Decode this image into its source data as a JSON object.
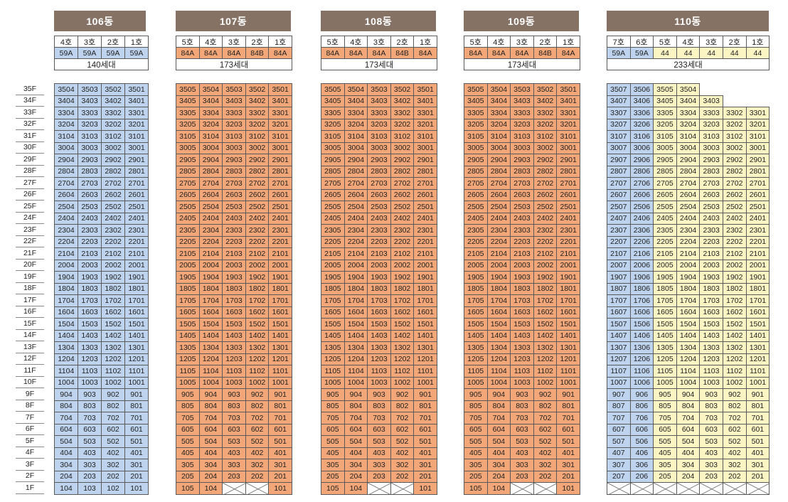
{
  "colors": {
    "59A": "#bed3ee",
    "84A": "#f3a677",
    "84B": "#f3a677",
    "44": "#fbf5c3",
    "empty": "#ffffff",
    "header": "#857265"
  },
  "floors": [
    "35F",
    "34F",
    "33F",
    "32F",
    "31F",
    "30F",
    "29F",
    "28F",
    "27F",
    "26F",
    "25F",
    "24F",
    "23F",
    "22F",
    "21F",
    "20F",
    "19F",
    "18F",
    "17F",
    "16F",
    "15F",
    "14F",
    "13F",
    "12F",
    "11F",
    "10F",
    "9F",
    "8F",
    "7F",
    "6F",
    "5F",
    "4F",
    "3F",
    "2F",
    "1F"
  ],
  "buildings": [
    {
      "name": "106동",
      "units": [
        "4호",
        "3호",
        "2호",
        "1호"
      ],
      "types": [
        "59A",
        "59A",
        "59A",
        "59A"
      ],
      "households": "140세대",
      "typeClass": [
        "blue",
        "blue",
        "blue",
        "blue"
      ],
      "maxFloor": [
        35,
        35,
        35,
        35
      ],
      "empty1F": []
    },
    {
      "name": "107동",
      "units": [
        "5호",
        "4호",
        "3호",
        "2호",
        "1호"
      ],
      "types": [
        "84A",
        "84A",
        "84A",
        "84B",
        "84A"
      ],
      "households": "173세대",
      "typeClass": [
        "orange",
        "orange",
        "orange",
        "orange",
        "orange"
      ],
      "maxFloor": [
        35,
        35,
        35,
        35,
        35
      ],
      "empty1F": [
        2,
        3
      ]
    },
    {
      "name": "108동",
      "units": [
        "5호",
        "4호",
        "3호",
        "2호",
        "1호"
      ],
      "types": [
        "84A",
        "84A",
        "84A",
        "84B",
        "84A"
      ],
      "households": "173세대",
      "typeClass": [
        "orange",
        "orange",
        "orange",
        "orange",
        "orange"
      ],
      "maxFloor": [
        35,
        35,
        35,
        35,
        35
      ],
      "empty1F": [
        2,
        3
      ]
    },
    {
      "name": "109동",
      "units": [
        "5호",
        "4호",
        "3호",
        "2호",
        "1호"
      ],
      "types": [
        "84A",
        "84A",
        "84A",
        "84B",
        "84A"
      ],
      "households": "173세대",
      "typeClass": [
        "orange",
        "orange",
        "orange",
        "orange",
        "orange"
      ],
      "maxFloor": [
        35,
        35,
        35,
        35,
        35
      ],
      "empty1F": [
        2,
        3
      ]
    },
    {
      "name": "110동",
      "units": [
        "7호",
        "6호",
        "5호",
        "4호",
        "3호",
        "2호",
        "1호"
      ],
      "types": [
        "59A",
        "59A",
        "44",
        "44",
        "44",
        "44",
        "44"
      ],
      "households": "233세대",
      "typeClass": [
        "blue",
        "blue",
        "yellow",
        "yellow",
        "yellow",
        "yellow",
        "yellow"
      ],
      "maxFloor": [
        35,
        35,
        35,
        35,
        34,
        33,
        33
      ],
      "empty1F": [
        0,
        1,
        2,
        3,
        4,
        5,
        6
      ]
    }
  ]
}
